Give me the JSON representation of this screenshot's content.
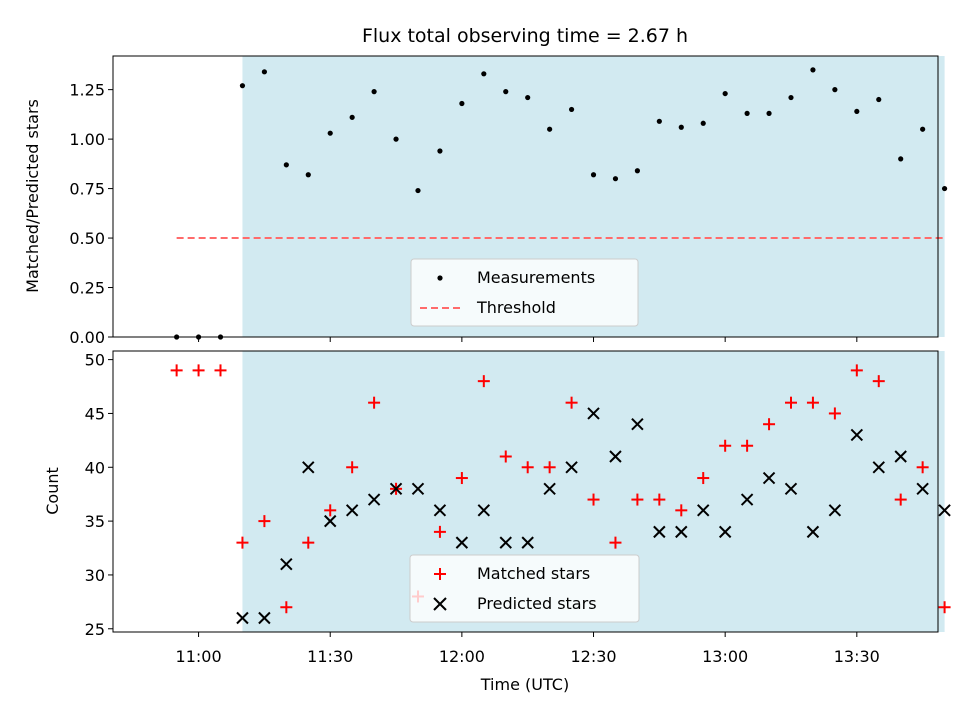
{
  "chart_data": {
    "type": "scatter",
    "title": "Flux total observing time = 2.67 h",
    "xlabel": "Time (UTC)",
    "x_tick_labels": [
      {
        "t": 660,
        "label": "11:00"
      },
      {
        "t": 690,
        "label": "11:30"
      },
      {
        "t": 720,
        "label": "12:00"
      },
      {
        "t": 750,
        "label": "12:30"
      },
      {
        "t": 780,
        "label": "13:00"
      },
      {
        "t": 810,
        "label": "13:30"
      }
    ],
    "x_unit": "minutes after 00:00 UTC",
    "shaded_interval": {
      "start": "11:10",
      "end": "13:50",
      "color": "#add8e6"
    },
    "subplots": [
      {
        "name": "ratio",
        "ylabel": "Matched/Predicted stars",
        "ylim": [
          0,
          1.42
        ],
        "yticks": [
          0,
          0.25,
          0.5,
          0.75,
          1.0,
          1.25
        ],
        "ytick_labels": [
          "0.00",
          "0.25",
          "0.50",
          "0.75",
          "1.00",
          "1.25"
        ],
        "legend": {
          "placement": "lower center"
        },
        "series": [
          {
            "name": "Measurements",
            "kind": "dot",
            "color": "#000000",
            "x": [
              "10:55",
              "11:00",
              "11:05",
              "11:10",
              "11:15",
              "11:20",
              "11:25",
              "11:30",
              "11:35",
              "11:40",
              "11:45",
              "11:50",
              "11:55",
              "12:00",
              "12:05",
              "12:10",
              "12:15",
              "12:20",
              "12:25",
              "12:30",
              "12:35",
              "12:40",
              "12:45",
              "12:50",
              "12:55",
              "13:00",
              "13:05",
              "13:10",
              "13:15",
              "13:20",
              "13:25",
              "13:30",
              "13:35",
              "13:40",
              "13:45",
              "13:50"
            ],
            "y": [
              0.0,
              0.0,
              0.0,
              1.27,
              1.34,
              0.87,
              0.82,
              1.03,
              1.11,
              1.24,
              1.0,
              0.74,
              0.94,
              1.18,
              1.33,
              1.24,
              1.21,
              1.05,
              1.15,
              0.82,
              0.8,
              0.84,
              1.09,
              1.06,
              1.08,
              1.23,
              1.13,
              1.13,
              1.21,
              1.35,
              1.25,
              1.14,
              1.2,
              0.9,
              1.05,
              0.75
            ]
          },
          {
            "name": "Threshold",
            "kind": "dashed-line",
            "color": "#ff6b6b",
            "x": [
              "10:55",
              "13:50"
            ],
            "y": [
              0.5,
              0.5
            ]
          }
        ]
      },
      {
        "name": "counts",
        "ylabel": "Count",
        "ylim": [
          24.7,
          50.8
        ],
        "yticks": [
          25,
          30,
          35,
          40,
          45,
          50
        ],
        "ytick_labels": [
          "25",
          "30",
          "35",
          "40",
          "45",
          "50"
        ],
        "legend": {
          "placement": "lower center"
        },
        "series": [
          {
            "name": "Matched stars",
            "kind": "plus",
            "color": "#ff0000",
            "x": [
              "10:55",
              "11:00",
              "11:05",
              "11:10",
              "11:15",
              "11:20",
              "11:25",
              "11:30",
              "11:35",
              "11:40",
              "11:45",
              "11:50",
              "11:55",
              "12:00",
              "12:05",
              "12:10",
              "12:15",
              "12:20",
              "12:25",
              "12:30",
              "12:35",
              "12:40",
              "12:45",
              "12:50",
              "12:55",
              "13:00",
              "13:05",
              "13:10",
              "13:15",
              "13:20",
              "13:25",
              "13:30",
              "13:35",
              "13:40",
              "13:45",
              "13:50"
            ],
            "y": [
              49,
              49,
              49,
              33,
              35,
              27,
              33,
              36,
              40,
              46,
              38,
              28,
              34,
              39,
              48,
              41,
              40,
              40,
              46,
              37,
              33,
              37,
              37,
              36,
              39,
              42,
              42,
              44,
              46,
              46,
              45,
              49,
              48,
              37,
              40,
              27
            ]
          },
          {
            "name": "Predicted stars",
            "kind": "x",
            "color": "#000000",
            "x": [
              "11:10",
              "11:15",
              "11:20",
              "11:25",
              "11:30",
              "11:35",
              "11:40",
              "11:45",
              "11:50",
              "11:55",
              "12:00",
              "12:05",
              "12:10",
              "12:15",
              "12:20",
              "12:25",
              "12:30",
              "12:35",
              "12:40",
              "12:45",
              "12:50",
              "12:55",
              "13:00",
              "13:05",
              "13:10",
              "13:15",
              "13:20",
              "13:25",
              "13:30",
              "13:35",
              "13:40",
              "13:45",
              "13:50"
            ],
            "y": [
              26,
              26,
              31,
              40,
              35,
              36,
              37,
              38,
              38,
              36,
              33,
              36,
              33,
              33,
              38,
              40,
              45,
              41,
              44,
              34,
              34,
              36,
              34,
              37,
              39,
              38,
              34,
              36,
              43,
              40,
              41,
              38,
              36
            ]
          }
        ]
      }
    ]
  }
}
